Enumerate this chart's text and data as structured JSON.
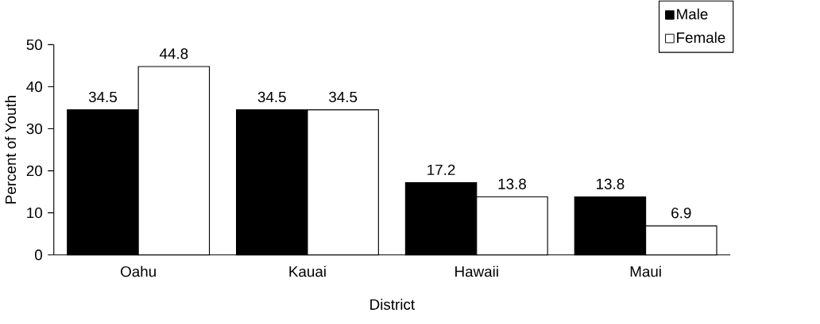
{
  "chart_data": {
    "type": "bar",
    "xlabel": "District",
    "ylabel": "Percent of Youth",
    "categories": [
      "Oahu",
      "Kauai",
      "Hawaii",
      "Maui"
    ],
    "series": [
      {
        "name": "Male",
        "color": "#000000",
        "values": [
          34.5,
          34.5,
          17.2,
          13.8
        ]
      },
      {
        "name": "Female",
        "color": "#ffffff",
        "values": [
          44.8,
          34.5,
          13.8,
          6.9
        ]
      }
    ],
    "ylim": [
      0,
      50
    ],
    "yticks": [
      0,
      10,
      20,
      30,
      40,
      50
    ],
    "data_labels": true,
    "legend": "top right",
    "grid": false
  }
}
